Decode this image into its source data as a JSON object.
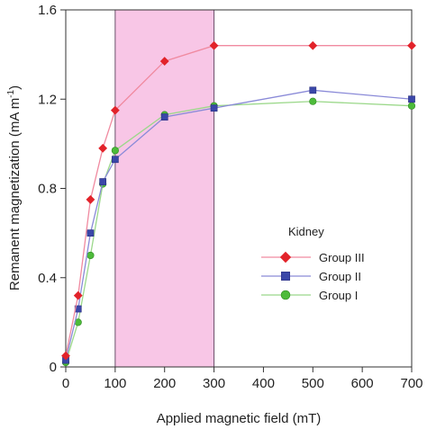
{
  "chart_data": {
    "type": "line",
    "title": "",
    "xlabel": "Applied magnetic field (mT)",
    "ylabel": "Remanent magnetization (mA m",
    "ylabel_sup": "-1",
    "ylabel_close": ")",
    "xlim": [
      0,
      700
    ],
    "ylim": [
      0,
      1.6
    ],
    "xticks": [
      0,
      100,
      200,
      300,
      400,
      500,
      600,
      700
    ],
    "xtick_labels": [
      "0",
      "100",
      "200",
      "300",
      "400",
      "500",
      "600",
      "700"
    ],
    "yticks": [
      0,
      0.4,
      0.8,
      1.2,
      1.6
    ],
    "ytick_labels": [
      "0",
      "0.4",
      "0.8",
      "1.2",
      "1.6"
    ],
    "shaded_region": {
      "x": [
        100,
        300
      ],
      "color": "#f8c6e6"
    },
    "grid": false,
    "legend": {
      "title": "Kidney",
      "position": "right"
    },
    "series": [
      {
        "name": "Group III",
        "marker": "diamond",
        "line_color": "#f08aa0",
        "marker_color": "#e2232a",
        "x": [
          0,
          25,
          50,
          75,
          100,
          200,
          300,
          500,
          700
        ],
        "y": [
          0.05,
          0.32,
          0.75,
          0.98,
          1.15,
          1.37,
          1.44,
          1.44,
          1.44
        ]
      },
      {
        "name": "Group II",
        "marker": "square",
        "line_color": "#8a8ad8",
        "marker_color": "#3a47a8",
        "x": [
          0,
          25,
          50,
          75,
          100,
          200,
          300,
          500,
          700
        ],
        "y": [
          0.03,
          0.26,
          0.6,
          0.83,
          0.93,
          1.12,
          1.16,
          1.24,
          1.2
        ]
      },
      {
        "name": "Group I",
        "marker": "circle",
        "line_color": "#9bd88a",
        "marker_color": "#4dbb3a",
        "x": [
          0,
          25,
          50,
          75,
          100,
          200,
          300,
          500,
          700
        ],
        "y": [
          0.02,
          0.2,
          0.5,
          0.82,
          0.97,
          1.13,
          1.17,
          1.19,
          1.17
        ]
      }
    ]
  }
}
